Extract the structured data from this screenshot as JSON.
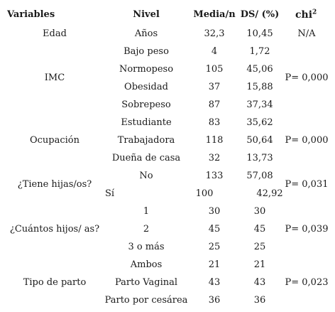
{
  "headers": {
    "variables": "Variables",
    "nivel": "Nivel",
    "media": "Media/n",
    "ds": "DS/ (%)",
    "chi_base": "chi",
    "chi_sup": "2"
  },
  "variables": {
    "edad": "Edad",
    "imc": "IMC",
    "ocupacion": "Ocupación",
    "hijos": "¿Tiene hijas/os?",
    "cuantos": "¿Cuántos hijos/ as?",
    "parto": "Tipo de parto"
  },
  "rows": [
    {
      "nivel": "Años",
      "media": "32,3",
      "ds": "10,45",
      "chi": "N/A"
    },
    {
      "nivel": "Bajo peso",
      "media": "4",
      "ds": "1,72",
      "chi": ""
    },
    {
      "nivel": "Normopeso",
      "media": "105",
      "ds": "45,06",
      "chi": "P= 0,000"
    },
    {
      "nivel": "Obesidad",
      "media": "37",
      "ds": "15,88",
      "chi": ""
    },
    {
      "nivel": "Sobrepeso",
      "media": "87",
      "ds": "37,34",
      "chi": ""
    },
    {
      "nivel": "Estudiante",
      "media": "83",
      "ds": "35,62",
      "chi": ""
    },
    {
      "nivel": "Trabajadora",
      "media": "118",
      "ds": "50,64",
      "chi": "P= 0,000"
    },
    {
      "nivel": "Dueña de casa",
      "media": "32",
      "ds": "13,73",
      "chi": ""
    },
    {
      "nivel": "No",
      "media": "133",
      "ds": "57,08",
      "chi": ""
    },
    {
      "nivel": "Sí",
      "media": "100",
      "ds": "42,92",
      "chi": ""
    },
    {
      "nivel": "1",
      "media": "30",
      "ds": "30",
      "chi": ""
    },
    {
      "nivel": "2",
      "media": "45",
      "ds": "45",
      "chi": ""
    },
    {
      "nivel": "3 o más",
      "media": "25",
      "ds": "25",
      "chi": ""
    },
    {
      "nivel": "Ambos",
      "media": "21",
      "ds": "21",
      "chi": ""
    },
    {
      "nivel": "Parto Vaginal",
      "media": "43",
      "ds": "43",
      "chi": ""
    },
    {
      "nivel": "Parto por cesárea",
      "media": "36",
      "ds": "36",
      "chi": ""
    }
  ],
  "chi_groups": {
    "hijos": "P= 0,031",
    "cuantos": "P= 0,039",
    "parto": "P= 0,023"
  }
}
